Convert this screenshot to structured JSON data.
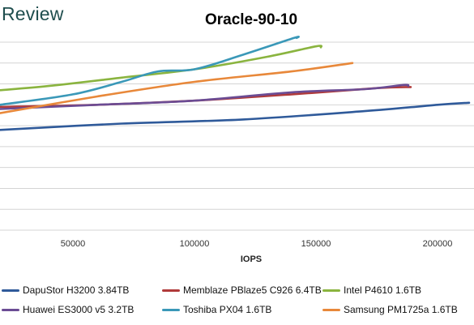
{
  "brand": "Review",
  "chart_data": {
    "type": "line",
    "title": "Oracle-90-10",
    "xlabel": "IOPS",
    "ylabel": "",
    "xlim": [
      20000,
      215000
    ],
    "ylim": [
      0,
      9
    ],
    "x_ticks": [
      50000,
      100000,
      150000,
      200000
    ],
    "grid": "horizontal",
    "legend_position": "bottom",
    "series": [
      {
        "name": "DapuStor H3200 3.84TB",
        "color": "#2f5a9a",
        "points": [
          [
            20000,
            4.8
          ],
          [
            70000,
            5.1
          ],
          [
            120000,
            5.3
          ],
          [
            170000,
            5.7
          ],
          [
            200000,
            6.0
          ],
          [
            213000,
            6.1
          ]
        ]
      },
      {
        "name": "Memblaze PBlaze5 C926 6.4TB",
        "color": "#b03a3a",
        "points": [
          [
            20000,
            5.9
          ],
          [
            60000,
            6.0
          ],
          [
            100000,
            6.2
          ],
          [
            140000,
            6.5
          ],
          [
            175000,
            6.8
          ],
          [
            189000,
            6.85
          ]
        ]
      },
      {
        "name": "Intel P4610 1.6TB",
        "color": "#8ab43f",
        "points": [
          [
            20000,
            6.7
          ],
          [
            40000,
            6.9
          ],
          [
            70000,
            7.3
          ],
          [
            100000,
            7.7
          ],
          [
            130000,
            8.3
          ],
          [
            150000,
            8.8
          ],
          [
            152000,
            8.75
          ]
        ]
      },
      {
        "name": "Huawei ES3000 v5 3.2TB",
        "color": "#6b4c94",
        "points": [
          [
            20000,
            5.8
          ],
          [
            60000,
            6.0
          ],
          [
            100000,
            6.2
          ],
          [
            140000,
            6.6
          ],
          [
            170000,
            6.75
          ],
          [
            186000,
            6.95
          ],
          [
            188000,
            6.9
          ]
        ]
      },
      {
        "name": "Toshiba PX04 1.6TB",
        "color": "#3a98b8",
        "points": [
          [
            20000,
            6.0
          ],
          [
            50000,
            6.5
          ],
          [
            70000,
            7.1
          ],
          [
            85000,
            7.6
          ],
          [
            100000,
            7.7
          ],
          [
            120000,
            8.4
          ],
          [
            141000,
            9.2
          ],
          [
            142000,
            9.2
          ]
        ]
      },
      {
        "name": "Samsung PM1725a 1.6TB",
        "color": "#e8883a",
        "points": [
          [
            20000,
            5.6
          ],
          [
            60000,
            6.4
          ],
          [
            100000,
            7.1
          ],
          [
            140000,
            7.6
          ],
          [
            165000,
            8.0
          ]
        ]
      }
    ]
  }
}
